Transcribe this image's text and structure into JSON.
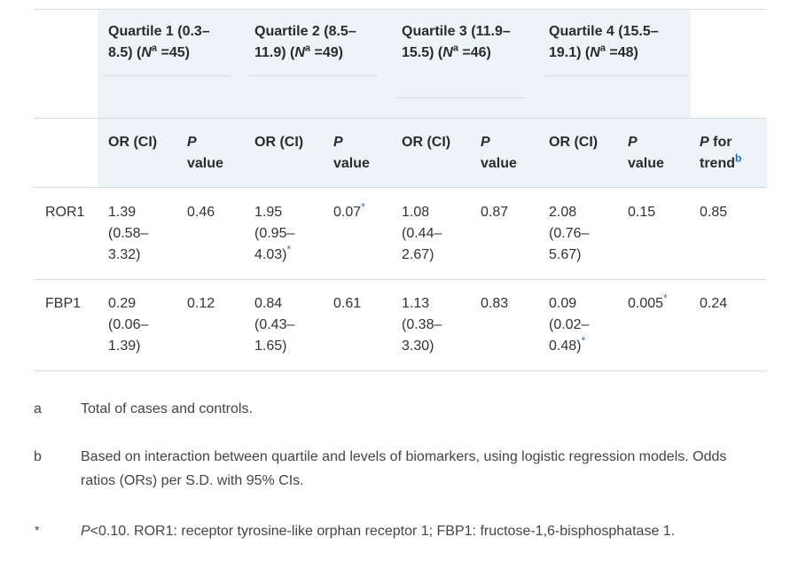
{
  "quartiles": [
    {
      "label": "Quartile 1 (0.3–8.5) (",
      "n_sym": "N",
      "n_sup": "a",
      "n_val": " =45)"
    },
    {
      "label": "Quartile 2 (8.5–11.9) (",
      "n_sym": "N",
      "n_sup": "a",
      "n_val": " =49)"
    },
    {
      "label": "Quartile 3 (11.9–15.5) (",
      "n_sym": "N",
      "n_sup": "a",
      "n_val": " =46)"
    },
    {
      "label": "Quartile 4 (15.5–19.1) (",
      "n_sym": "N",
      "n_sup": "a",
      "n_val": " =48)"
    }
  ],
  "subheaders": {
    "or_ci": "OR (CI)",
    "p": "P",
    "value": "value",
    "p_for": "P",
    "for_trend": " for trend",
    "trend_sup": "b"
  },
  "rows": [
    {
      "name": "ROR1",
      "cells": [
        {
          "or": "1.39 (0.58–3.32)",
          "or_star": "",
          "p": "0.46",
          "p_star": ""
        },
        {
          "or": "1.95 (0.95–4.03)",
          "or_star": "*",
          "p": "0.07",
          "p_star": "*"
        },
        {
          "or": "1.08 (0.44–2.67)",
          "or_star": "",
          "p": "0.87",
          "p_star": ""
        },
        {
          "or": "2.08 (0.76–5.67)",
          "or_star": "",
          "p": "0.15",
          "p_star": ""
        }
      ],
      "trend": "0.85"
    },
    {
      "name": "FBP1",
      "cells": [
        {
          "or": "0.29 (0.06–1.39)",
          "or_star": "",
          "p": "0.12",
          "p_star": ""
        },
        {
          "or": "0.84 (0.43–1.65)",
          "or_star": "",
          "p": "0.61",
          "p_star": ""
        },
        {
          "or": "1.13 (0.38–3.30)",
          "or_star": "",
          "p": "0.83",
          "p_star": ""
        },
        {
          "or": "0.09 (0.02–0.48)",
          "or_star": "*",
          "p": "0.005",
          "p_star": "*"
        }
      ],
      "trend": "0.24"
    }
  ],
  "footnotes": [
    {
      "mark": "a",
      "text": "Total of cases and controls."
    },
    {
      "mark": "b",
      "text": "Based on interaction between quartile and levels of biomarkers, using logistic regression models. Odds ratios (ORs) per S.D. with 95% CIs."
    },
    {
      "mark": "*",
      "text_italic": "P",
      "text": "<0.10. ROR1: receptor tyrosine-like orphan receptor 1; FBP1: fructose-1,6-bisphosphatase 1."
    }
  ]
}
